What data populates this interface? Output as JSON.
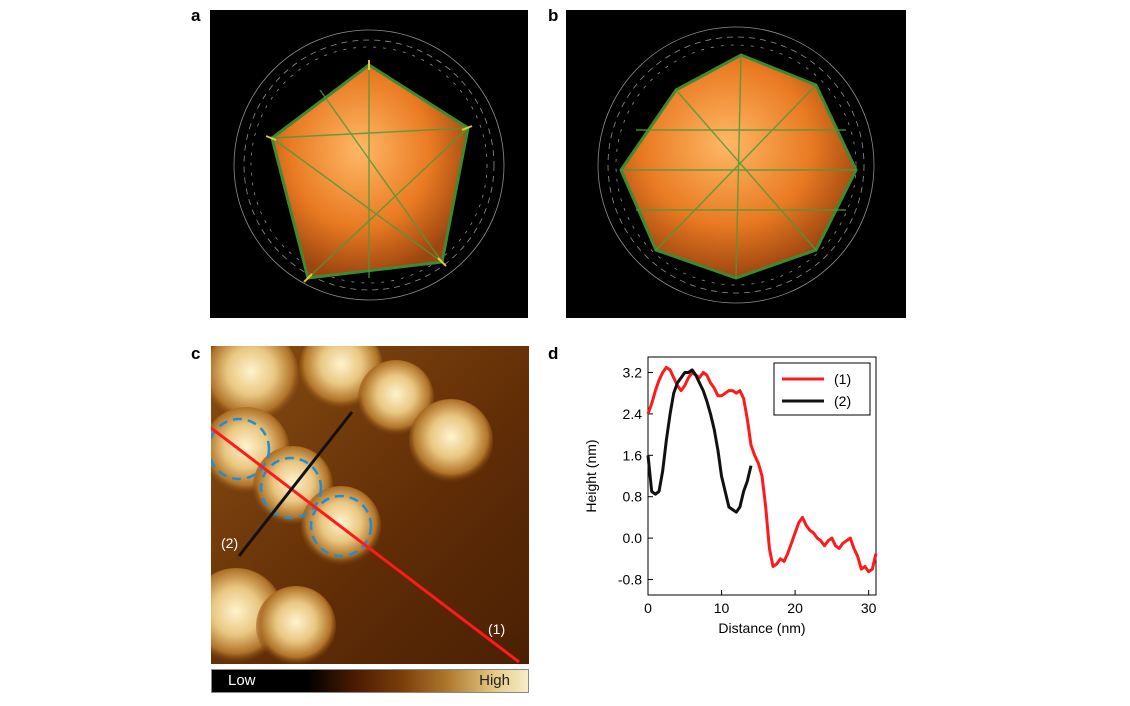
{
  "panels": {
    "a": {
      "label": "a"
    },
    "b": {
      "label": "b"
    },
    "c": {
      "label": "c",
      "line1_label": "(1)",
      "line2_label": "(2)",
      "colorbar_low": "Low",
      "colorbar_high": "High",
      "colors": {
        "line1": "#ff1a1a",
        "line2": "#111111",
        "circles": "#1e8fd6"
      }
    },
    "d": {
      "label": "d"
    }
  },
  "chart_data": {
    "type": "line",
    "title": "",
    "xlabel": "Distance (nm)",
    "ylabel": "Height (nm)",
    "xlim": [
      0,
      31
    ],
    "ylim": [
      -1.1,
      3.5
    ],
    "xticks": [
      0,
      10,
      20,
      30
    ],
    "yticks": [
      -0.8,
      0.0,
      0.8,
      1.6,
      2.4,
      3.2
    ],
    "ytick_labels": [
      "-0.8",
      "0.0",
      "0.8",
      "1.6",
      "2.4",
      "3.2"
    ],
    "legend_position": "top-right",
    "grid": false,
    "series": [
      {
        "name": "(1)",
        "color": "#ff1a1a",
        "x": [
          0,
          0.5,
          1,
          1.5,
          2,
          2.5,
          3,
          3.5,
          4,
          4.5,
          5,
          5.5,
          6,
          6.5,
          7,
          7.5,
          8,
          8.5,
          9,
          9.5,
          10,
          10.5,
          11,
          11.5,
          12,
          12.5,
          13,
          13.5,
          14,
          14.5,
          15,
          15.5,
          16,
          16.5,
          17,
          17.5,
          18,
          18.5,
          19,
          19.5,
          20,
          20.5,
          21,
          21.5,
          22,
          22.5,
          23,
          23.5,
          24,
          24.5,
          25,
          25.5,
          26,
          26.5,
          27,
          27.5,
          28,
          28.5,
          29,
          29.5,
          30,
          30.5,
          31
        ],
        "y": [
          2.4,
          2.6,
          2.85,
          3.05,
          3.2,
          3.3,
          3.25,
          3.1,
          2.95,
          2.85,
          2.95,
          3.1,
          3.2,
          3.15,
          3.1,
          3.2,
          3.15,
          3.0,
          2.9,
          2.75,
          2.75,
          2.8,
          2.85,
          2.85,
          2.8,
          2.85,
          2.7,
          2.3,
          1.8,
          1.6,
          1.45,
          1.2,
          0.6,
          -0.2,
          -0.55,
          -0.5,
          -0.4,
          -0.45,
          -0.3,
          -0.1,
          0.1,
          0.3,
          0.4,
          0.25,
          0.15,
          0.1,
          0.0,
          -0.05,
          -0.15,
          -0.05,
          0.0,
          -0.15,
          -0.2,
          -0.1,
          -0.05,
          0.0,
          -0.2,
          -0.35,
          -0.6,
          -0.55,
          -0.65,
          -0.6,
          -0.3
        ]
      },
      {
        "name": "(2)",
        "color": "#111111",
        "x": [
          0,
          0.5,
          1,
          1.5,
          2,
          2.5,
          3,
          3.5,
          4,
          4.5,
          5,
          5.5,
          6,
          6.5,
          7,
          7.5,
          8,
          8.5,
          9,
          9.5,
          10,
          10.5,
          11,
          11.5,
          12,
          12.5,
          13,
          13.5,
          14
        ],
        "y": [
          1.6,
          0.9,
          0.85,
          0.9,
          1.3,
          1.9,
          2.4,
          2.8,
          3.0,
          3.1,
          3.2,
          3.2,
          3.25,
          3.15,
          3.0,
          2.85,
          2.65,
          2.4,
          2.1,
          1.7,
          1.2,
          0.9,
          0.6,
          0.55,
          0.5,
          0.6,
          0.9,
          1.1,
          1.4
        ]
      }
    ]
  }
}
